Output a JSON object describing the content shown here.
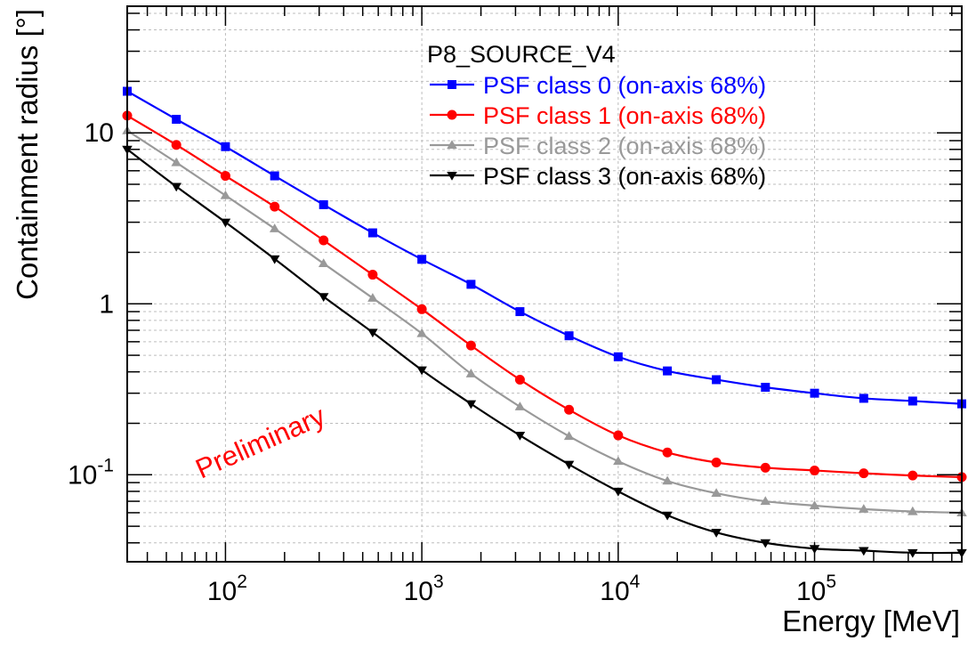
{
  "chart_data": {
    "type": "line",
    "title": "",
    "xlabel": "Energy [MeV]",
    "ylabel": "Containment radius [°]",
    "x_scale": "log",
    "y_scale": "log",
    "xlim": [
      31.6,
      562000
    ],
    "ylim": [
      0.031,
      55
    ],
    "grid": true,
    "legend_title": "P8_SOURCE_V4",
    "legend_position": "top-right",
    "annotation": "Preliminary",
    "x_tick_labels": [
      {
        "value": 100,
        "base": "10",
        "exp": "2"
      },
      {
        "value": 1000,
        "base": "10",
        "exp": "3"
      },
      {
        "value": 10000,
        "base": "10",
        "exp": "4"
      },
      {
        "value": 100000,
        "base": "10",
        "exp": "5"
      }
    ],
    "y_tick_labels": [
      {
        "value": 0.1,
        "base": "10",
        "exp": "-1"
      },
      {
        "value": 1,
        "base": "1",
        "exp": ""
      },
      {
        "value": 10,
        "base": "10",
        "exp": ""
      }
    ],
    "x": [
      31.6,
      56.2,
      100,
      178,
      316,
      562,
      1000,
      1780,
      3160,
      5620,
      10000,
      17800,
      31600,
      56200,
      100000,
      178000,
      316000,
      562000
    ],
    "series": [
      {
        "name": "PSF class 0 (on-axis 68%)",
        "color": "#0000ff",
        "marker": "square",
        "values": [
          17.5,
          12.0,
          8.3,
          5.6,
          3.8,
          2.6,
          1.82,
          1.3,
          0.9,
          0.65,
          0.49,
          0.405,
          0.36,
          0.325,
          0.3,
          0.28,
          0.27,
          0.26
        ]
      },
      {
        "name": "PSF class 1 (on-axis 68%)",
        "color": "#ff0000",
        "marker": "circle",
        "values": [
          12.6,
          8.5,
          5.6,
          3.7,
          2.35,
          1.48,
          0.93,
          0.57,
          0.36,
          0.24,
          0.17,
          0.135,
          0.118,
          0.11,
          0.106,
          0.102,
          0.099,
          0.097
        ]
      },
      {
        "name": "PSF class 2 (on-axis 68%)",
        "color": "#999999",
        "marker": "triangle-up",
        "values": [
          10.3,
          6.7,
          4.3,
          2.75,
          1.72,
          1.08,
          0.67,
          0.39,
          0.25,
          0.168,
          0.12,
          0.092,
          0.078,
          0.07,
          0.066,
          0.063,
          0.061,
          0.06
        ]
      },
      {
        "name": "PSF class 3 (on-axis 68%)",
        "color": "#000000",
        "marker": "triangle-down",
        "values": [
          8.0,
          4.85,
          3.0,
          1.83,
          1.1,
          0.68,
          0.41,
          0.26,
          0.17,
          0.115,
          0.08,
          0.058,
          0.046,
          0.04,
          0.037,
          0.036,
          0.035,
          0.035
        ]
      }
    ]
  }
}
